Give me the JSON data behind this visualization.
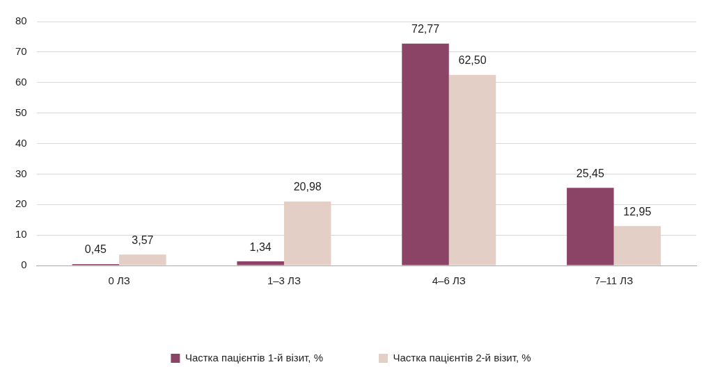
{
  "chart_data": {
    "type": "bar",
    "categories": [
      "0 ЛЗ",
      "1–3 ЛЗ",
      "4–6 ЛЗ",
      "7–11 ЛЗ"
    ],
    "series": [
      {
        "name": "Частка пацієнтів 1-й візит, %",
        "color": "#8b4466",
        "values": [
          0.45,
          1.34,
          72.77,
          25.45
        ],
        "value_labels": [
          "0,45",
          "1,34",
          "72,77",
          "25,45"
        ]
      },
      {
        "name": "Частка пацієнтів 2-й візит, %",
        "color": "#e3cfc5",
        "values": [
          3.57,
          20.98,
          62.5,
          12.95
        ],
        "value_labels": [
          "3,57",
          "20,98",
          "62,50",
          "12,95"
        ]
      }
    ],
    "ylim": [
      0,
      80
    ],
    "yticks": [
      0,
      10,
      20,
      30,
      40,
      50,
      60,
      70,
      80
    ],
    "grid": "y",
    "legend": "bottom"
  }
}
